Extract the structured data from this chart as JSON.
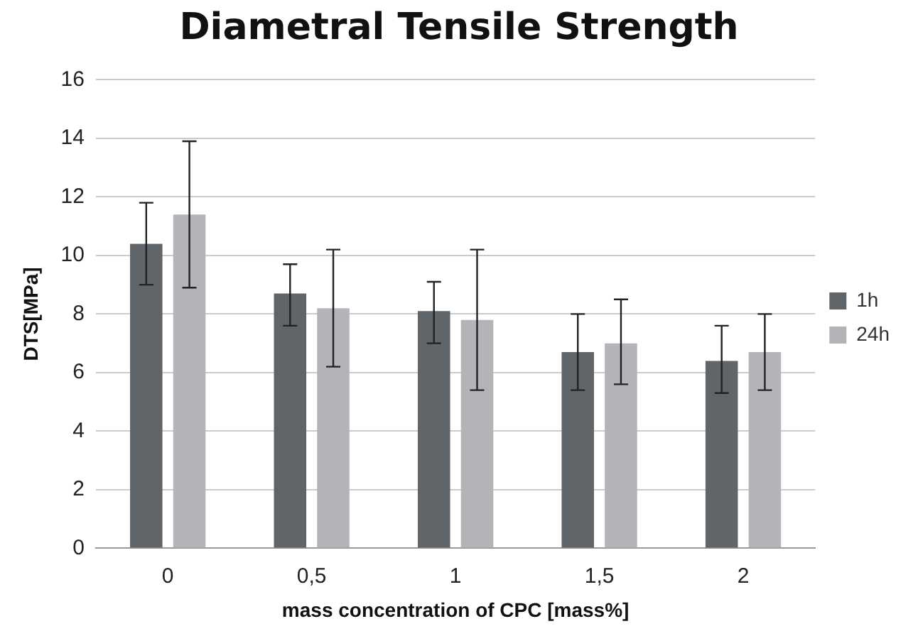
{
  "chart_data": {
    "type": "bar",
    "title": "Diametral Tensile Strength",
    "xlabel": "mass concentration of CPC [mass%]",
    "ylabel": "DTS[MPa]",
    "categories": [
      "0",
      "0,5",
      "1",
      "1,5",
      "2"
    ],
    "series": [
      {
        "name": "1h",
        "color": "#5f6569",
        "values": [
          10.4,
          8.7,
          8.1,
          6.7,
          6.4
        ],
        "errors": [
          [
            9.0,
            11.8
          ],
          [
            7.6,
            9.7
          ],
          [
            7.0,
            9.1
          ],
          [
            5.4,
            8.0
          ],
          [
            5.3,
            7.6
          ]
        ]
      },
      {
        "name": "24h",
        "color": "#b3b4b8",
        "values": [
          11.4,
          8.2,
          7.8,
          7.0,
          6.7
        ],
        "errors": [
          [
            8.9,
            13.9
          ],
          [
            6.2,
            10.2
          ],
          [
            5.4,
            10.2
          ],
          [
            5.6,
            8.5
          ],
          [
            5.4,
            8.0
          ]
        ]
      }
    ],
    "ylim": [
      0,
      16
    ],
    "yticks": [
      0,
      2,
      4,
      6,
      8,
      10,
      12,
      14,
      16
    ],
    "grid": "y",
    "legend": "right"
  }
}
